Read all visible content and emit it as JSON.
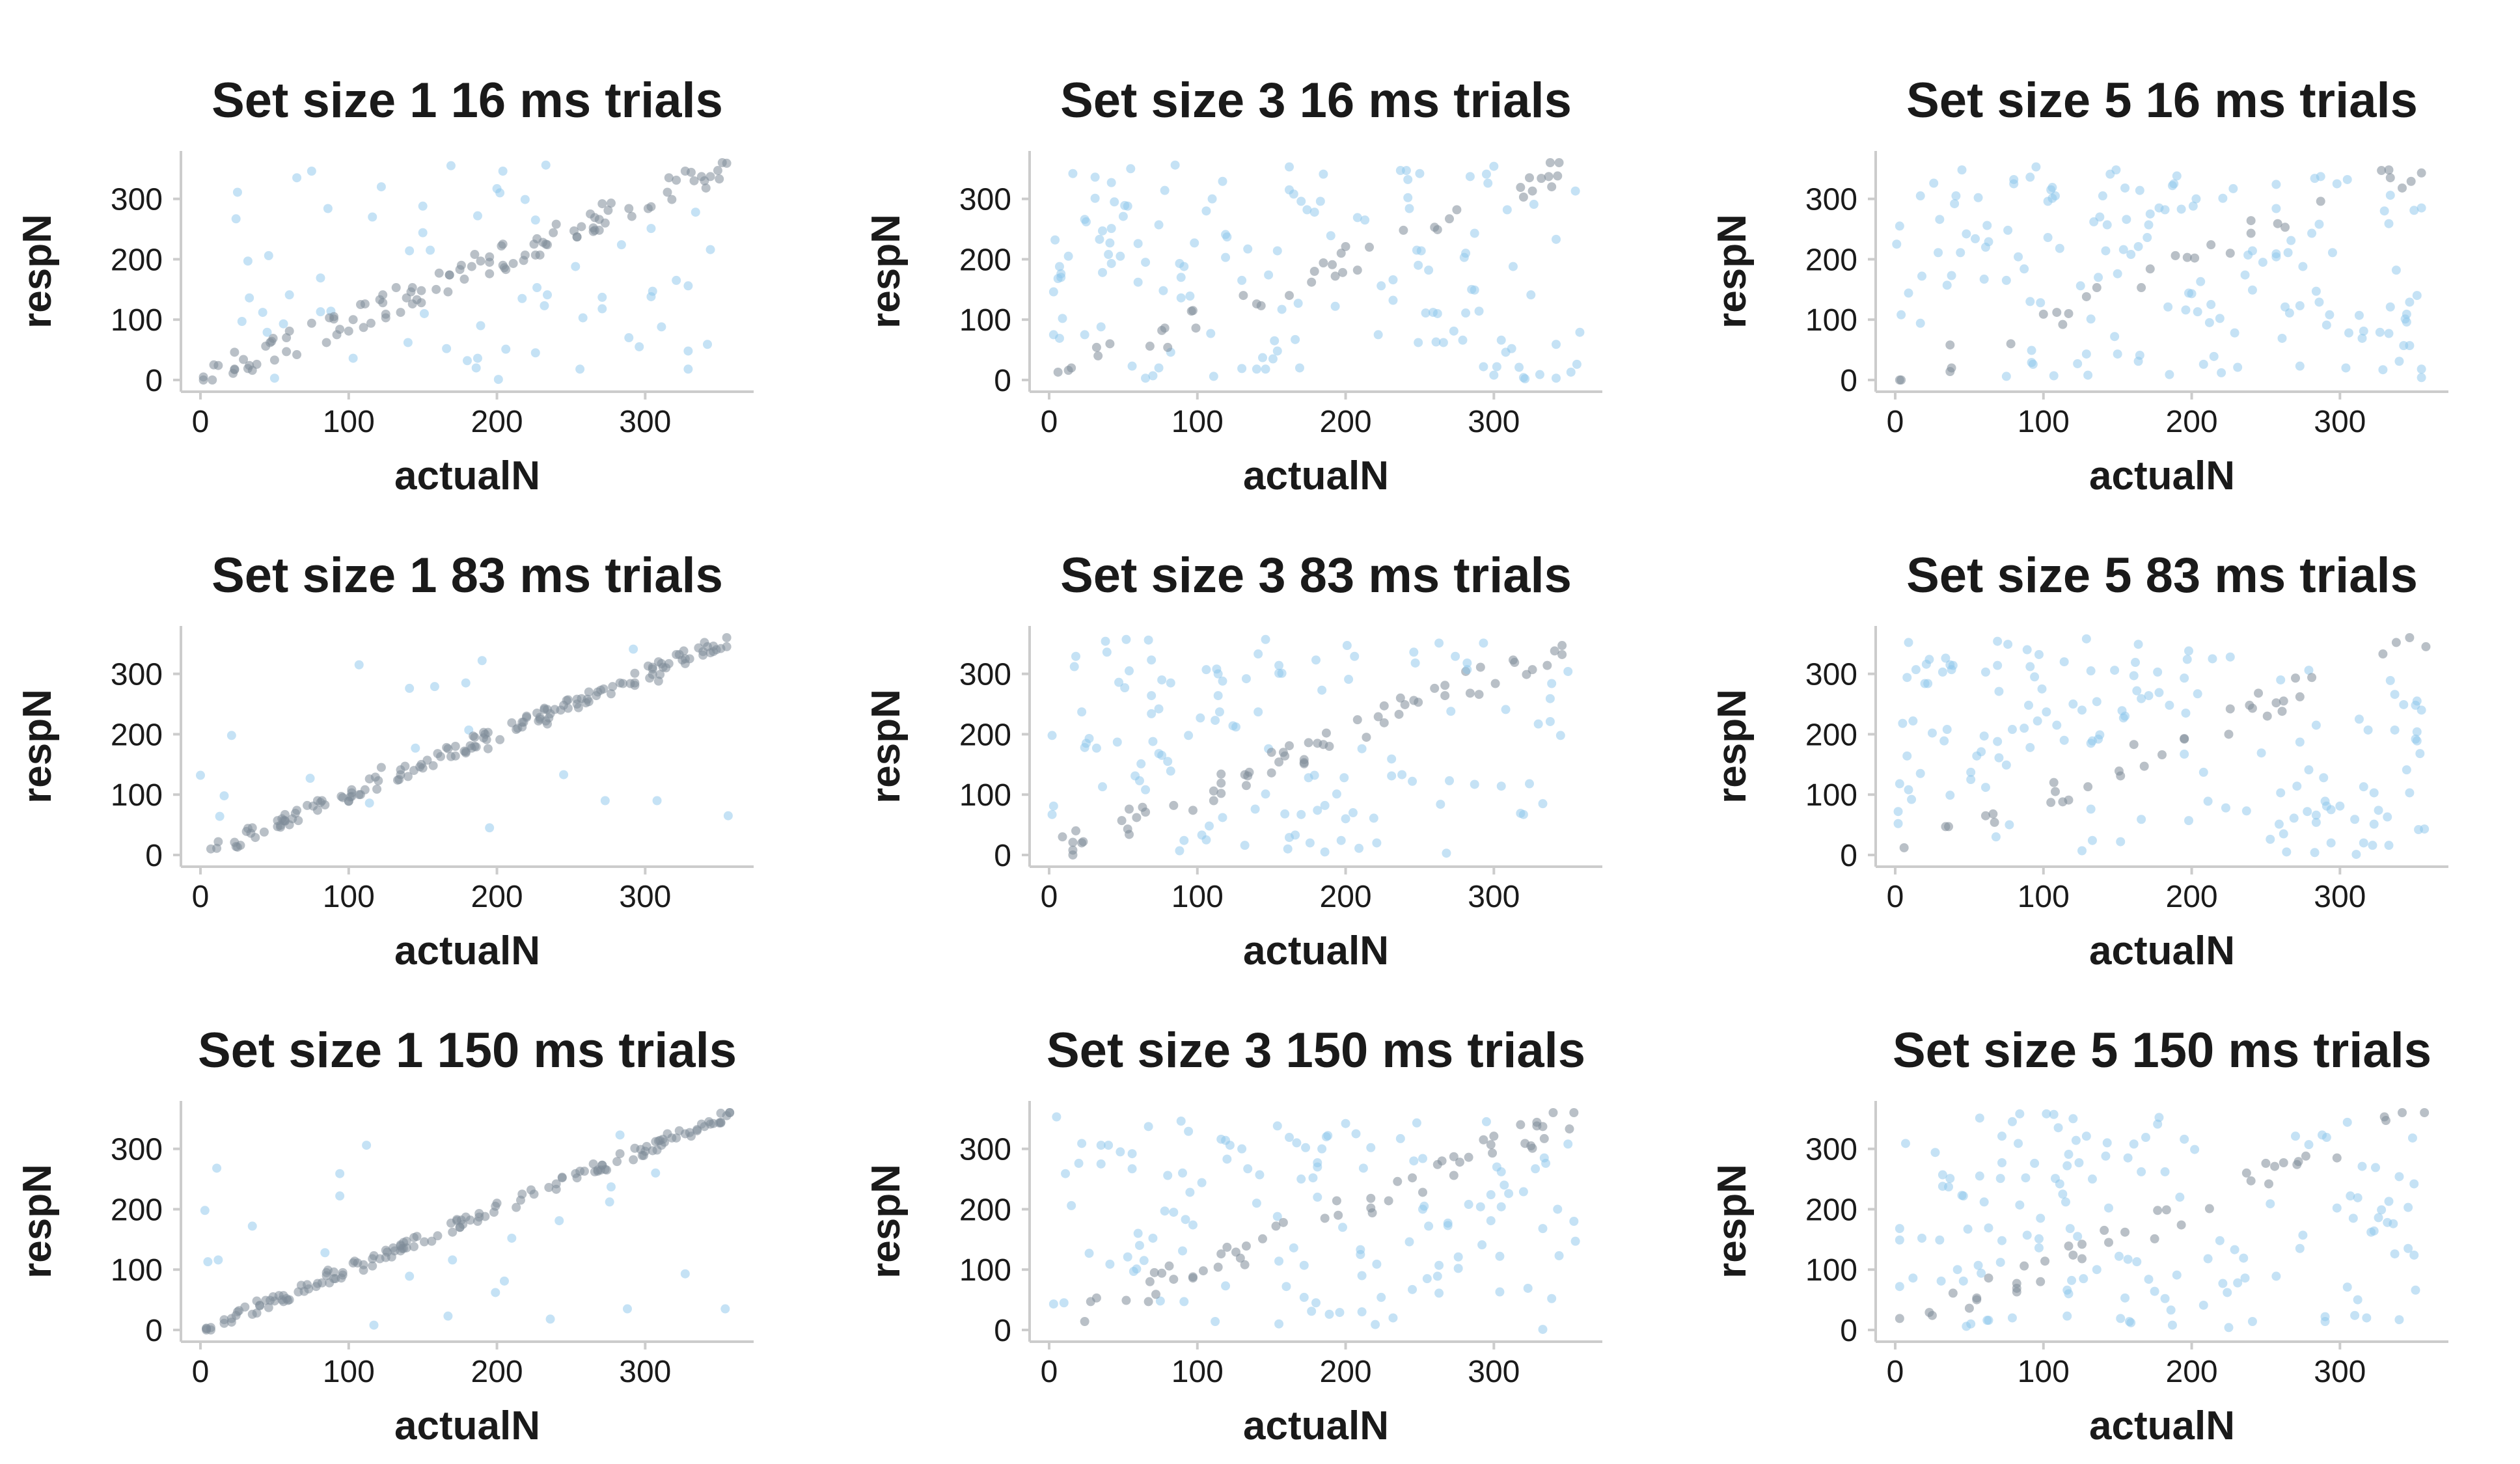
{
  "colors": {
    "within": "#7f8c99",
    "outlier": "#8cc6ec",
    "axis": "#cccccc",
    "text": "#1a1a1a"
  },
  "chart_data": [
    {
      "type": "scatter",
      "title": "Set size 1 16 ms trials",
      "xlabel": "actualN",
      "ylabel": "respN",
      "set_size": 1,
      "duration_ms": 16,
      "xlim": [
        0,
        360
      ],
      "ylim": [
        0,
        360
      ],
      "x_ticks": [
        0,
        100,
        200,
        300
      ],
      "y_ticks": [
        0,
        100,
        200,
        300
      ],
      "grid": false,
      "noise": 0.78,
      "within_frac": 0.55,
      "seed": 11
    },
    {
      "type": "scatter",
      "title": "Set size 3 16 ms trials",
      "xlabel": "actualN",
      "ylabel": "respN",
      "set_size": 3,
      "duration_ms": 16,
      "xlim": [
        0,
        360
      ],
      "ylim": [
        0,
        360
      ],
      "x_ticks": [
        0,
        100,
        200,
        300
      ],
      "y_ticks": [
        0,
        100,
        200,
        300
      ],
      "grid": false,
      "noise": 0.9,
      "within_frac": 0.15,
      "seed": 23
    },
    {
      "type": "scatter",
      "title": "Set size 5 16 ms trials",
      "xlabel": "actualN",
      "ylabel": "respN",
      "set_size": 5,
      "duration_ms": 16,
      "xlim": [
        0,
        360
      ],
      "ylim": [
        0,
        360
      ],
      "x_ticks": [
        0,
        100,
        200,
        300
      ],
      "y_ticks": [
        0,
        100,
        200,
        300
      ],
      "grid": false,
      "noise": 0.95,
      "within_frac": 0.08,
      "seed": 37
    },
    {
      "type": "scatter",
      "title": "Set size 1 83 ms trials",
      "xlabel": "actualN",
      "ylabel": "respN",
      "set_size": 1,
      "duration_ms": 83,
      "xlim": [
        0,
        360
      ],
      "ylim": [
        0,
        360
      ],
      "x_ticks": [
        0,
        100,
        200,
        300
      ],
      "y_ticks": [
        0,
        100,
        200,
        300
      ],
      "grid": false,
      "noise": 0.2,
      "within_frac": 0.85,
      "seed": 41
    },
    {
      "type": "scatter",
      "title": "Set size 3 83 ms trials",
      "xlabel": "actualN",
      "ylabel": "respN",
      "set_size": 3,
      "duration_ms": 83,
      "xlim": [
        0,
        360
      ],
      "ylim": [
        0,
        360
      ],
      "x_ticks": [
        0,
        100,
        200,
        300
      ],
      "y_ticks": [
        0,
        100,
        200,
        300
      ],
      "grid": false,
      "noise": 0.88,
      "within_frac": 0.15,
      "seed": 53
    },
    {
      "type": "scatter",
      "title": "Set size 5 83 ms trials",
      "xlabel": "actualN",
      "ylabel": "respN",
      "set_size": 5,
      "duration_ms": 83,
      "xlim": [
        0,
        360
      ],
      "ylim": [
        0,
        360
      ],
      "x_ticks": [
        0,
        100,
        200,
        300
      ],
      "y_ticks": [
        0,
        100,
        200,
        300
      ],
      "grid": false,
      "noise": 0.95,
      "within_frac": 0.06,
      "seed": 67
    },
    {
      "type": "scatter",
      "title": "Set size 1 150 ms trials",
      "xlabel": "actualN",
      "ylabel": "respN",
      "set_size": 1,
      "duration_ms": 150,
      "xlim": [
        0,
        360
      ],
      "ylim": [
        0,
        360
      ],
      "x_ticks": [
        0,
        100,
        200,
        300
      ],
      "y_ticks": [
        0,
        100,
        200,
        300
      ],
      "grid": false,
      "noise": 0.12,
      "within_frac": 0.9,
      "seed": 79
    },
    {
      "type": "scatter",
      "title": "Set size 3 150 ms trials",
      "xlabel": "actualN",
      "ylabel": "respN",
      "set_size": 3,
      "duration_ms": 150,
      "xlim": [
        0,
        360
      ],
      "ylim": [
        0,
        360
      ],
      "x_ticks": [
        0,
        100,
        200,
        300
      ],
      "y_ticks": [
        0,
        100,
        200,
        300
      ],
      "grid": false,
      "noise": 0.85,
      "within_frac": 0.22,
      "seed": 83
    },
    {
      "type": "scatter",
      "title": "Set size 5 150 ms trials",
      "xlabel": "actualN",
      "ylabel": "respN",
      "set_size": 5,
      "duration_ms": 150,
      "xlim": [
        0,
        360
      ],
      "ylim": [
        0,
        360
      ],
      "x_ticks": [
        0,
        100,
        200,
        300
      ],
      "y_ticks": [
        0,
        100,
        200,
        300
      ],
      "grid": false,
      "noise": 0.92,
      "within_frac": 0.12,
      "seed": 97
    }
  ]
}
